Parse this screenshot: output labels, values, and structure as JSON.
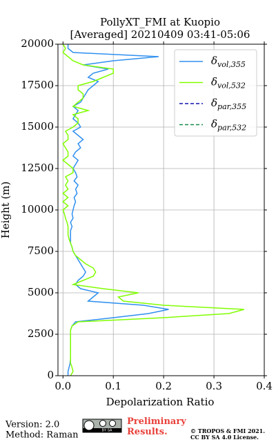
{
  "chart_data": {
    "type": "line",
    "title": "PollyXT_FMI at Kuopio",
    "subtitle": "[Averaged] 20210409 03:41-05:06",
    "x_label": "Depolarization Ratio",
    "y_label": "Height (m)",
    "y": [
      0,
      250,
      500,
      750,
      1000,
      1250,
      1500,
      1750,
      2000,
      2250,
      2500,
      2750,
      3000,
      3250,
      3500,
      3750,
      4000,
      4250,
      4500,
      4750,
      5000,
      5250,
      5500,
      5750,
      6000,
      6250,
      6500,
      6750,
      7000,
      7250,
      7500,
      7750,
      8000,
      8250,
      8500,
      8750,
      9000,
      9250,
      9500,
      9750,
      10000,
      10250,
      10500,
      10750,
      11000,
      11250,
      11500,
      11750,
      12000,
      12250,
      12500,
      12750,
      13000,
      13250,
      13500,
      13750,
      14000,
      14250,
      14500,
      14750,
      15000,
      15250,
      15500,
      15750,
      16000,
      16250,
      16500,
      16750,
      17000,
      17250,
      17500,
      17750,
      18000,
      18250,
      18500,
      18750,
      19000,
      19250,
      19500,
      19750,
      20000
    ],
    "series": [
      {
        "name": "δvol,355",
        "color": "#2e8fef",
        "dash": "solid",
        "values": [
          0.01,
          0.01,
          0.012,
          0.014,
          0.015,
          0.015,
          0.015,
          0.015,
          0.015,
          0.015,
          0.015,
          0.015,
          0.018,
          0.025,
          0.1,
          0.17,
          0.21,
          0.16,
          0.05,
          0.06,
          0.07,
          0.035,
          0.025,
          0.03,
          0.04,
          0.045,
          0.04,
          0.035,
          0.03,
          0.025,
          0.02,
          0.018,
          0.015,
          0.015,
          0.015,
          0.015,
          0.018,
          0.015,
          0.02,
          0.018,
          0.02,
          0.022,
          0.025,
          0.022,
          0.028,
          0.025,
          0.03,
          0.022,
          0.028,
          0.025,
          0.02,
          0.025,
          0.03,
          0.02,
          0.025,
          0.035,
          0.03,
          0.04,
          0.03,
          0.02,
          0.035,
          0.03,
          0.02,
          0.025,
          0.03,
          0.02,
          0.035,
          0.04,
          0.045,
          0.05,
          0.06,
          0.07,
          0.05,
          0.06,
          0.09,
          0.04,
          0.1,
          0.19,
          0.02,
          0.01,
          0.01
        ]
      },
      {
        "name": "δvol,532",
        "color": "#80ff00",
        "dash": "solid",
        "values": [
          0.015,
          0.02,
          0.018,
          0.015,
          0.015,
          0.015,
          0.015,
          0.015,
          0.015,
          0.015,
          0.015,
          0.015,
          0.018,
          0.03,
          0.2,
          0.33,
          0.36,
          0.2,
          0.12,
          0.11,
          0.15,
          0.08,
          0.02,
          0.04,
          0.06,
          0.065,
          0.06,
          0.045,
          0.035,
          0.025,
          0.02,
          0.018,
          0.015,
          0.012,
          0.01,
          0.01,
          0.01,
          0.008,
          0.005,
          0.003,
          0.0,
          0.01,
          0.0,
          0.01,
          0.0,
          0.01,
          0.005,
          0.01,
          0.005,
          0.02,
          0.02,
          0.01,
          0.0,
          0.01,
          0.01,
          0.005,
          0.0,
          0.01,
          0.01,
          0.005,
          0.02,
          0.03,
          0.03,
          0.02,
          0.05,
          0.02,
          0.03,
          0.04,
          0.04,
          0.03,
          0.03,
          0.06,
          0.08,
          0.1,
          0.1,
          0.04,
          0.02,
          0.01,
          0.0,
          0.005,
          0.0
        ]
      },
      {
        "name": "δpar,355",
        "color": "#1010b0",
        "dash": "dashed"
      },
      {
        "name": "δpar,532",
        "color": "#138a4a",
        "dash": "dashed"
      }
    ],
    "xlim": [
      -0.01,
      0.4
    ],
    "xticks": [
      {
        "value": 0,
        "label": "0.0"
      },
      0.1,
      0.2,
      0.3,
      0.4
    ],
    "ylim": [
      0,
      20000
    ],
    "yticks": [
      0,
      2500,
      5000,
      7500,
      10000,
      12500,
      15000,
      17500,
      20000
    ],
    "grid": true,
    "legend": "upper right"
  },
  "footer": {
    "version": "Version: 2.0",
    "method": "Method: Raman",
    "license_badge": "BY SA",
    "notice": "Preliminary Results.",
    "copyright": "© TROPOS & FMI 2021.",
    "license": "CC BY SA 4.0 License."
  }
}
